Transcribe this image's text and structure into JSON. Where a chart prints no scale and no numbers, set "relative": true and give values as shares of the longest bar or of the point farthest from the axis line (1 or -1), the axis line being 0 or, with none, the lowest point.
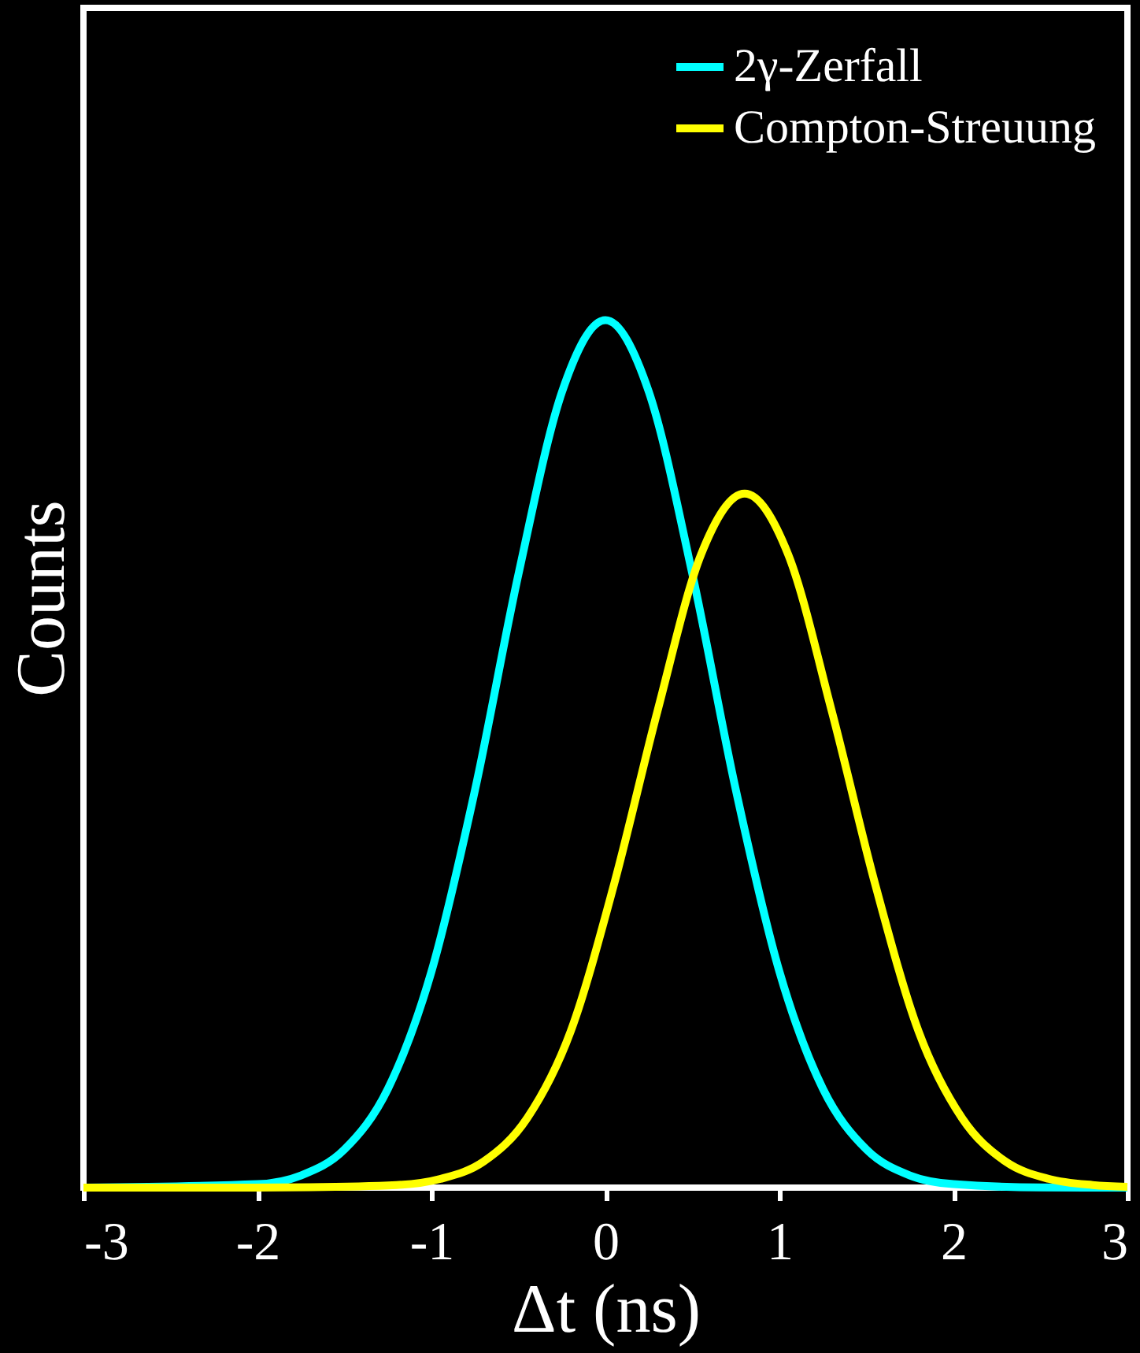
{
  "chart_data": {
    "type": "line",
    "xlabel": "Δt (ns)",
    "ylabel": "Counts",
    "relative": true,
    "xlim": [
      -3,
      3
    ],
    "xticks": [
      -3,
      -2,
      -1,
      0,
      1,
      2,
      3
    ],
    "tick_labels": "x",
    "legend": "top right",
    "grid": false,
    "marker": "none",
    "line_style": "solid",
    "series": [
      {
        "name": "2γ-Zerfall",
        "color": "#00ffff",
        "x": [
          -3,
          -2,
          -1.75,
          -1.5,
          -1.25,
          -1,
          -0.75,
          -0.5,
          -0.25,
          0,
          0.25,
          0.5,
          0.75,
          1,
          1.25,
          1.5,
          1.75,
          2,
          2.5,
          3
        ],
        "values": [
          0,
          0.004,
          0.014,
          0.044,
          0.114,
          0.249,
          0.458,
          0.707,
          0.917,
          1,
          0.917,
          0.707,
          0.458,
          0.249,
          0.114,
          0.044,
          0.014,
          0.004,
          0.0002,
          0
        ]
      },
      {
        "name": "Compton-Streuung",
        "color": "#ffff00",
        "x": [
          -3,
          -2.2,
          -1.7,
          -1.2,
          -0.95,
          -0.7,
          -0.45,
          -0.2,
          0.05,
          0.3,
          0.55,
          0.8,
          1.05,
          1.3,
          1.55,
          1.8,
          2.05,
          2.3,
          2.55,
          2.8,
          3
        ],
        "values": [
          0,
          0,
          0.0005,
          0.003,
          0.01,
          0.03,
          0.08,
          0.18,
          0.35,
          0.55,
          0.73,
          0.8,
          0.73,
          0.55,
          0.35,
          0.18,
          0.08,
          0.03,
          0.01,
          0.003,
          0.001
        ]
      }
    ]
  }
}
